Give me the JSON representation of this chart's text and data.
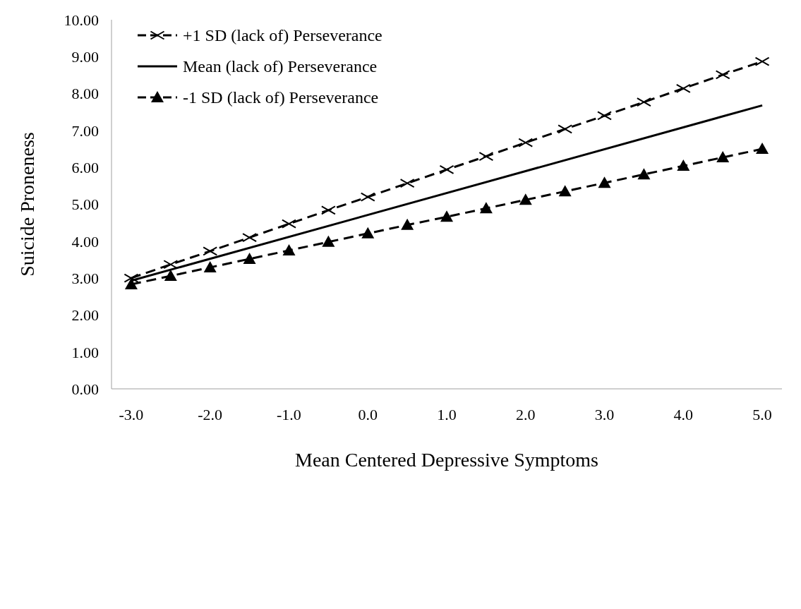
{
  "chart_data": {
    "type": "line",
    "xlabel": "Mean Centered Depressive Symptoms",
    "ylabel": "Suicide Proneness",
    "xlim": [
      -3.25,
      5.25
    ],
    "xticks": [
      {
        "value": -3,
        "label": "-3.0"
      },
      {
        "value": -2,
        "label": "-2.0"
      },
      {
        "value": -1,
        "label": "-1.0"
      },
      {
        "value": 0,
        "label": "0.0"
      },
      {
        "value": 1,
        "label": "1.0"
      },
      {
        "value": 2,
        "label": "2.0"
      },
      {
        "value": 3,
        "label": "3.0"
      },
      {
        "value": 4,
        "label": "4.0"
      },
      {
        "value": 5,
        "label": "5.0"
      }
    ],
    "ylim": [
      0,
      10
    ],
    "yticks": [
      {
        "value": 0,
        "label": "0.00"
      },
      {
        "value": 1,
        "label": "1.00"
      },
      {
        "value": 2,
        "label": "2.00"
      },
      {
        "value": 3,
        "label": "3.00"
      },
      {
        "value": 4,
        "label": "4.00"
      },
      {
        "value": 5,
        "label": "5.00"
      },
      {
        "value": 6,
        "label": "6.00"
      },
      {
        "value": 7,
        "label": "7.00"
      },
      {
        "value": 8,
        "label": "8.00"
      },
      {
        "value": 9,
        "label": "9.00"
      },
      {
        "value": 10,
        "label": "10.00"
      }
    ],
    "grid": false,
    "legend": "top left",
    "series": [
      {
        "name": "+1 SD (lack of) Perseverance",
        "color": "#000000",
        "marker": "cross",
        "line_style": "dashed",
        "x": [
          -3,
          -2.5,
          -2,
          -1.5,
          -1,
          -0.5,
          0,
          0.5,
          1,
          1.5,
          2,
          2.5,
          3,
          3.5,
          4,
          4.5,
          5
        ],
        "values": [
          3.0,
          3.37,
          3.73,
          4.1,
          4.47,
          4.84,
          5.2,
          5.57,
          5.94,
          6.3,
          6.67,
          7.04,
          7.4,
          7.77,
          8.14,
          8.51,
          8.87
        ]
      },
      {
        "name": "Mean (lack of) Perseverance",
        "color": "#000000",
        "marker": "none",
        "line_style": "solid",
        "x": [
          -3,
          5
        ],
        "values": [
          2.93,
          7.68
        ]
      },
      {
        "name": "-1 SD (lack of) Perseverance",
        "color": "#000000",
        "marker": "triangle",
        "line_style": "dashed",
        "x": [
          -3,
          -2.5,
          -2,
          -1.5,
          -1,
          -0.5,
          0,
          0.5,
          1,
          1.5,
          2,
          2.5,
          3,
          3.5,
          4,
          4.5,
          5
        ],
        "values": [
          2.83,
          3.06,
          3.29,
          3.52,
          3.75,
          3.98,
          4.21,
          4.44,
          4.66,
          4.89,
          5.12,
          5.35,
          5.58,
          5.81,
          6.04,
          6.27,
          6.5
        ]
      }
    ]
  }
}
